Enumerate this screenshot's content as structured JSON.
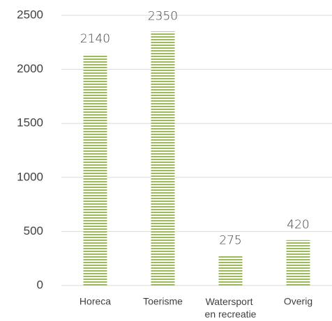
{
  "chart_data": {
    "type": "bar",
    "categories": [
      "Horeca",
      "Toerisme",
      "Watersport en recreatie",
      "Overig"
    ],
    "values": [
      2140,
      2350,
      275,
      420
    ],
    "color": "#9bbb59",
    "ylim": [
      0,
      2500
    ],
    "yticks": [
      0,
      500,
      1000,
      1500,
      2000,
      2500
    ],
    "grid": true
  }
}
